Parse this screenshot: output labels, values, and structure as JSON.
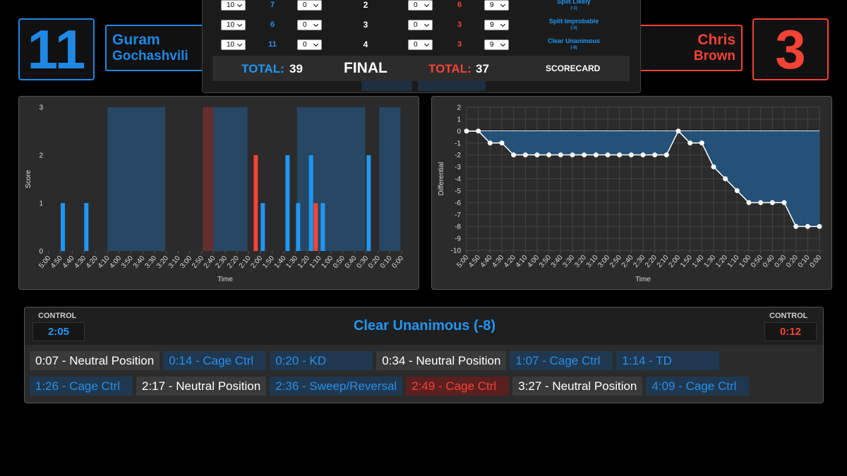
{
  "fighters": {
    "left": {
      "score": 11,
      "first_name": "Guram",
      "last_name": "Gochashvili"
    },
    "right": {
      "score": 3,
      "first_name": "Chris",
      "last_name": "Brown"
    }
  },
  "scorecard": {
    "rows": [
      {
        "left_points": 10,
        "left_stat": 7,
        "left_deduct": 0,
        "round": 2,
        "right_deduct": 0,
        "right_stat": 6,
        "right_points": 9,
        "verdict": "Split Likely",
        "verdict_note": "(-1)"
      },
      {
        "left_points": 10,
        "left_stat": 6,
        "left_deduct": 0,
        "round": 3,
        "right_deduct": 0,
        "right_stat": 3,
        "right_points": 9,
        "verdict": "Split Improbable",
        "verdict_note": "(-3)"
      },
      {
        "left_points": 10,
        "left_stat": 11,
        "left_deduct": 0,
        "round": 4,
        "right_deduct": 0,
        "right_stat": 3,
        "right_points": 9,
        "verdict": "Clear Unanimous",
        "verdict_note": "(-8)"
      }
    ],
    "left_total_label": "TOTAL:",
    "left_total": 39,
    "status": "FINAL",
    "right_total_label": "TOTAL:",
    "right_total": 37,
    "button": "SCORECARD"
  },
  "chart_data": [
    {
      "type": "bar",
      "xlabel": "Time",
      "ylabel": "Score",
      "xlim": [
        300,
        0
      ],
      "ylim": [
        0,
        3
      ],
      "yticks": [
        0,
        1,
        2,
        3
      ],
      "grid": false,
      "xticks": [
        {
          "value": 300,
          "label": "5:00"
        },
        {
          "value": 290,
          "label": "4:50"
        },
        {
          "value": 280,
          "label": "4:40"
        },
        {
          "value": 270,
          "label": "4:30"
        },
        {
          "value": 260,
          "label": "4:20"
        },
        {
          "value": 250,
          "label": "4:10"
        },
        {
          "value": 240,
          "label": "4:00"
        },
        {
          "value": 230,
          "label": "3:50"
        },
        {
          "value": 220,
          "label": "3:40"
        },
        {
          "value": 210,
          "label": "3:30"
        },
        {
          "value": 200,
          "label": "3:20"
        },
        {
          "value": 190,
          "label": "3:10"
        },
        {
          "value": 180,
          "label": "3:00"
        },
        {
          "value": 170,
          "label": "2:50"
        },
        {
          "value": 160,
          "label": "2:40"
        },
        {
          "value": 150,
          "label": "2:30"
        },
        {
          "value": 140,
          "label": "2:20"
        },
        {
          "value": 130,
          "label": "2:10"
        },
        {
          "value": 120,
          "label": "2:00"
        },
        {
          "value": 110,
          "label": "1:50"
        },
        {
          "value": 100,
          "label": "1:40"
        },
        {
          "value": 90,
          "label": "1:30"
        },
        {
          "value": 80,
          "label": "1:20"
        },
        {
          "value": 70,
          "label": "1:10"
        },
        {
          "value": 60,
          "label": "1:00"
        },
        {
          "value": 50,
          "label": "0:50"
        },
        {
          "value": 40,
          "label": "0:40"
        },
        {
          "value": 30,
          "label": "0:30"
        },
        {
          "value": 20,
          "label": "0:20"
        },
        {
          "value": 10,
          "label": "0:10"
        },
        {
          "value": 0,
          "label": "0:00"
        }
      ],
      "regions": [
        {
          "from": 250,
          "to": 201,
          "color": "#1e88e5"
        },
        {
          "from": 169,
          "to": 160,
          "color": "#e53935"
        },
        {
          "from": 160,
          "to": 131,
          "color": "#1e88e5"
        },
        {
          "from": 89,
          "to": 31,
          "color": "#1e88e5"
        },
        {
          "from": 19,
          "to": 1,
          "color": "#1e88e5"
        }
      ],
      "series": [
        {
          "color": "#2196f3",
          "x": [
            288,
            268,
            118,
            97,
            88,
            77,
            67,
            28
          ],
          "values": [
            1,
            1,
            1,
            2,
            1,
            2,
            1,
            2
          ]
        },
        {
          "color": "#f44336",
          "x": [
            124,
            73
          ],
          "values": [
            2,
            1
          ]
        }
      ]
    },
    {
      "type": "line",
      "xlabel": "Time",
      "ylabel": "Differential",
      "xlim": [
        300,
        0
      ],
      "ylim": [
        -10,
        2
      ],
      "yticks": [
        -10,
        -9,
        -8,
        -7,
        -6,
        -5,
        -4,
        -3,
        -2,
        -1,
        0,
        1,
        2
      ],
      "grid": true,
      "xticks": [
        {
          "value": 300,
          "label": "5:00"
        },
        {
          "value": 290,
          "label": "4:50"
        },
        {
          "value": 280,
          "label": "4:40"
        },
        {
          "value": 270,
          "label": "4:30"
        },
        {
          "value": 260,
          "label": "4:20"
        },
        {
          "value": 250,
          "label": "4:10"
        },
        {
          "value": 240,
          "label": "4:00"
        },
        {
          "value": 230,
          "label": "3:50"
        },
        {
          "value": 220,
          "label": "3:40"
        },
        {
          "value": 210,
          "label": "3:30"
        },
        {
          "value": 200,
          "label": "3:20"
        },
        {
          "value": 190,
          "label": "3:10"
        },
        {
          "value": 180,
          "label": "3:00"
        },
        {
          "value": 170,
          "label": "2:50"
        },
        {
          "value": 160,
          "label": "2:40"
        },
        {
          "value": 150,
          "label": "2:30"
        },
        {
          "value": 140,
          "label": "2:20"
        },
        {
          "value": 130,
          "label": "2:10"
        },
        {
          "value": 120,
          "label": "2:00"
        },
        {
          "value": 110,
          "label": "1:50"
        },
        {
          "value": 100,
          "label": "1:40"
        },
        {
          "value": 90,
          "label": "1:30"
        },
        {
          "value": 80,
          "label": "1:20"
        },
        {
          "value": 70,
          "label": "1:10"
        },
        {
          "value": 60,
          "label": "1:00"
        },
        {
          "value": 50,
          "label": "0:50"
        },
        {
          "value": 40,
          "label": "0:40"
        },
        {
          "value": 30,
          "label": "0:30"
        },
        {
          "value": 20,
          "label": "0:20"
        },
        {
          "value": 10,
          "label": "0:10"
        },
        {
          "value": 0,
          "label": "0:00"
        }
      ],
      "series": [
        {
          "color": "#ffffff",
          "fill": "#22557f",
          "x": [
            300,
            290,
            280,
            270,
            260,
            250,
            240,
            230,
            220,
            210,
            200,
            190,
            180,
            170,
            160,
            150,
            140,
            130,
            120,
            110,
            100,
            90,
            80,
            70,
            60,
            50,
            40,
            30,
            20,
            10,
            0
          ],
          "values": [
            0,
            0,
            -1,
            -1,
            -2,
            -2,
            -2,
            -2,
            -2,
            -2,
            -2,
            -2,
            -2,
            -2,
            -2,
            -2,
            -2,
            -2,
            0,
            -1,
            -1,
            -3,
            -4,
            -5,
            -6,
            -6,
            -6,
            -6,
            -8,
            -8,
            -8
          ]
        }
      ]
    }
  ],
  "round_summary": {
    "left_control_label": "CONTROL",
    "left_control": "2:05",
    "verdict": "Clear Unanimous (-8)",
    "right_control_label": "CONTROL",
    "right_control": "0:12",
    "events": [
      {
        "text": "0:07 - Neutral Position",
        "color": "#ffffff",
        "background": "#3a3a3a"
      },
      {
        "text": "0:14 - Cage Ctrl",
        "color": "#2b8ee6",
        "background": "#1f3850"
      },
      {
        "text": "0:20 - KD",
        "color": "#2b8ee6",
        "background": "#1f3850"
      },
      {
        "text": "0:34 - Neutral Position",
        "color": "#ffffff",
        "background": "#3a3a3a"
      },
      {
        "text": "1:07 - Cage Ctrl",
        "color": "#2b8ee6",
        "background": "#1f3850"
      },
      {
        "text": "1:14 - TD",
        "color": "#2b8ee6",
        "background": "#1f3850"
      },
      {
        "text": "1:26 - Cage Ctrl",
        "color": "#2b8ee6",
        "background": "#1f3850"
      },
      {
        "text": "2:17 - Neutral Position",
        "color": "#ffffff",
        "background": "#3a3a3a"
      },
      {
        "text": "2:36 - Sweep/Reversal",
        "color": "#2b8ee6",
        "background": "#1f3850"
      },
      {
        "text": "2:49 - Cage Ctrl",
        "color": "#f44336",
        "background": "#5a2020"
      },
      {
        "text": "3:27 - Neutral Position",
        "color": "#ffffff",
        "background": "#3a3a3a"
      },
      {
        "text": "4:09 - Cage Ctrl",
        "color": "#2b8ee6",
        "background": "#1f3850"
      }
    ]
  }
}
